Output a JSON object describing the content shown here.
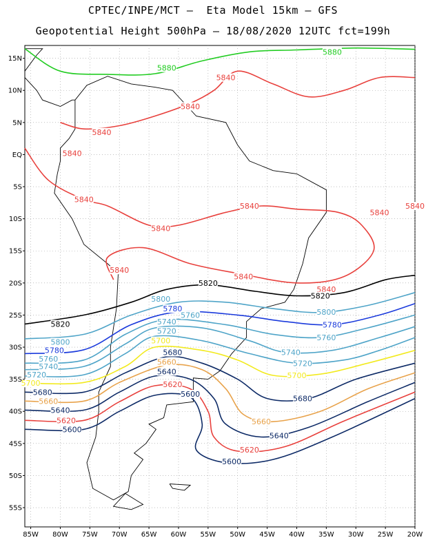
{
  "header": {
    "line1": "CPTEC/INPE/MCT –  Eta Model 15km – GFS",
    "line2": "Geopotential Height 500hPa – 18/08/2020 12UTC fct=199h"
  },
  "axes": {
    "lat_labels": [
      "15N",
      "10N",
      "5N",
      "EQ",
      "5S",
      "10S",
      "15S",
      "20S",
      "25S",
      "30S",
      "35S",
      "40S",
      "45S",
      "50S",
      "55S"
    ],
    "lat_values": [
      15,
      10,
      5,
      0,
      -5,
      -10,
      -15,
      -20,
      -25,
      -30,
      -35,
      -40,
      -45,
      -50,
      -55
    ],
    "lon_labels": [
      "85W",
      "80W",
      "75W",
      "70W",
      "65W",
      "60W",
      "55W",
      "50W",
      "45W",
      "40W",
      "35W",
      "30W",
      "25W",
      "20W"
    ],
    "lon_values": [
      -85,
      -80,
      -75,
      -70,
      -65,
      -60,
      -55,
      -50,
      -45,
      -40,
      -35,
      -30,
      -25,
      -20
    ],
    "lon_range": [
      -86,
      -20
    ],
    "lat_range": [
      -58,
      17
    ],
    "grid": "dotted"
  },
  "contours": [
    {
      "level": "5880",
      "color": "#22cc22",
      "label_lonlat": [
        [
          -62,
          13.5
        ],
        [
          -34,
          16
        ]
      ],
      "points": [
        [
          -86,
          16.5
        ],
        [
          -80,
          13
        ],
        [
          -72,
          12.5
        ],
        [
          -64,
          12.6
        ],
        [
          -56,
          14.6
        ],
        [
          -48,
          16
        ],
        [
          -40,
          16.3
        ],
        [
          -30,
          16.6
        ],
        [
          -20,
          16.4
        ]
      ]
    },
    {
      "level": "5840",
      "color": "#e8403c",
      "label_lonlat": [
        [
          -52,
          12
        ],
        [
          -58,
          7.5
        ],
        [
          -73,
          3.5
        ],
        [
          -78,
          0.2
        ],
        [
          -76,
          -7
        ],
        [
          -48,
          -8
        ],
        [
          -26,
          -9
        ],
        [
          -63,
          -11.5
        ],
        [
          -70,
          -18
        ],
        [
          -49,
          -19
        ],
        [
          -35,
          -21
        ],
        [
          -20,
          -8
        ]
      ],
      "points": [
        [
          -86,
          1
        ],
        [
          -82,
          -4
        ],
        [
          -76,
          -7
        ],
        [
          -72,
          -8
        ],
        [
          -65,
          -11
        ],
        [
          -60,
          -11
        ],
        [
          -52,
          -9
        ],
        [
          -46,
          -8
        ],
        [
          -40,
          -8.5
        ],
        [
          -33,
          -9
        ],
        [
          -29,
          -11
        ],
        [
          -27,
          -15
        ],
        [
          -32,
          -19
        ],
        [
          -40,
          -20
        ],
        [
          -50,
          -18.5
        ],
        [
          -58,
          -17
        ],
        [
          -66,
          -14.5
        ],
        [
          -72,
          -16
        ],
        [
          -71,
          -19.5
        ]
      ]
    },
    {
      "level": "5840",
      "color": "#e8403c",
      "label_lonlat": [],
      "points": [
        [
          -80,
          5
        ],
        [
          -76,
          4
        ],
        [
          -70,
          4.5
        ],
        [
          -64,
          6
        ],
        [
          -58,
          8
        ],
        [
          -54,
          10
        ],
        [
          -50,
          13
        ],
        [
          -44,
          11
        ],
        [
          -38,
          9
        ],
        [
          -32,
          10
        ],
        [
          -26,
          12
        ],
        [
          -20,
          12
        ]
      ]
    },
    {
      "level": "5820",
      "color": "#000000",
      "label_lonlat": [
        [
          -55,
          -20
        ],
        [
          -80,
          -26.4
        ],
        [
          -36,
          -22
        ]
      ],
      "points": [
        [
          -86,
          -26.4
        ],
        [
          -76,
          -25
        ],
        [
          -68,
          -23
        ],
        [
          -62,
          -21
        ],
        [
          -55,
          -20.3
        ],
        [
          -47,
          -21.3
        ],
        [
          -40,
          -22
        ],
        [
          -32,
          -21.5
        ],
        [
          -25,
          -19.5
        ],
        [
          -20,
          -18.8
        ]
      ]
    },
    {
      "level": "5800",
      "color": "#4ea4c8",
      "label_lonlat": [
        [
          -63,
          -22.5
        ],
        [
          -80,
          -29.2
        ],
        [
          -35,
          -24.5
        ]
      ],
      "points": [
        [
          -86,
          -28.7
        ],
        [
          -76,
          -28
        ],
        [
          -68,
          -25
        ],
        [
          -60,
          -23
        ],
        [
          -52,
          -23
        ],
        [
          -44,
          -24
        ],
        [
          -36,
          -24.6
        ],
        [
          -28,
          -23.5
        ],
        [
          -20,
          -21.5
        ]
      ]
    },
    {
      "level": "5780",
      "color": "#1a3adc",
      "label_lonlat": [
        [
          -61,
          -24
        ],
        [
          -81,
          -30.5
        ],
        [
          -34,
          -26.5
        ]
      ],
      "points": [
        [
          -86,
          -31
        ],
        [
          -76,
          -30.4
        ],
        [
          -68,
          -26.5
        ],
        [
          -60,
          -24.5
        ],
        [
          -50,
          -25
        ],
        [
          -42,
          -26
        ],
        [
          -34,
          -26.5
        ],
        [
          -26,
          -25
        ],
        [
          -20,
          -23.2
        ]
      ]
    },
    {
      "level": "5760",
      "color": "#4ea4c8",
      "label_lonlat": [
        [
          -58,
          -25
        ],
        [
          -82,
          -31.8
        ],
        [
          -35,
          -28.5
        ]
      ],
      "points": [
        [
          -86,
          -32.5
        ],
        [
          -76,
          -32
        ],
        [
          -69,
          -28
        ],
        [
          -62,
          -25.7
        ],
        [
          -52,
          -26.5
        ],
        [
          -44,
          -28
        ],
        [
          -36,
          -28.5
        ],
        [
          -28,
          -27
        ],
        [
          -20,
          -25
        ]
      ]
    },
    {
      "level": "5740",
      "color": "#4ea4c8",
      "label_lonlat": [
        [
          -62,
          -26
        ],
        [
          -82,
          -33
        ],
        [
          -41,
          -30.8
        ]
      ],
      "points": [
        [
          -86,
          -33.5
        ],
        [
          -76,
          -33
        ],
        [
          -69,
          -29.5
        ],
        [
          -64,
          -27
        ],
        [
          -56,
          -27
        ],
        [
          -48,
          -29
        ],
        [
          -42,
          -30.8
        ],
        [
          -34,
          -30.5
        ],
        [
          -26,
          -28.5
        ],
        [
          -20,
          -26.8
        ]
      ]
    },
    {
      "level": "5720",
      "color": "#4ea4c8",
      "label_lonlat": [
        [
          -62,
          -27.5
        ],
        [
          -84,
          -34.3
        ],
        [
          -39,
          -32.5
        ]
      ],
      "points": [
        [
          -86,
          -34.5
        ],
        [
          -76,
          -34.3
        ],
        [
          -69,
          -31
        ],
        [
          -64,
          -28.3
        ],
        [
          -56,
          -29
        ],
        [
          -48,
          -31
        ],
        [
          -40,
          -32.5
        ],
        [
          -32,
          -32
        ],
        [
          -26,
          -30.5
        ],
        [
          -20,
          -28.5
        ]
      ]
    },
    {
      "level": "5700",
      "color": "#f2ea1e",
      "label_lonlat": [
        [
          -63,
          -29
        ],
        [
          -85,
          -35.6
        ],
        [
          -40,
          -34.4
        ]
      ],
      "points": [
        [
          -86,
          -35.6
        ],
        [
          -76,
          -35.5
        ],
        [
          -69,
          -33
        ],
        [
          -64,
          -30
        ],
        [
          -56,
          -30.5
        ],
        [
          -50,
          -32
        ],
        [
          -44,
          -34.4
        ],
        [
          -36,
          -34.2
        ],
        [
          -28,
          -32.5
        ],
        [
          -20,
          -30.5
        ]
      ]
    },
    {
      "level": "5680",
      "color": "#0d2a66",
      "label_lonlat": [
        [
          -61,
          -30.8
        ],
        [
          -83,
          -37
        ],
        [
          -39,
          -38
        ]
      ],
      "points": [
        [
          -86,
          -37
        ],
        [
          -76,
          -37
        ],
        [
          -69,
          -34
        ],
        [
          -62,
          -31.5
        ],
        [
          -56,
          -32.5
        ],
        [
          -50,
          -35
        ],
        [
          -45,
          -38
        ],
        [
          -38,
          -38
        ],
        [
          -30,
          -35
        ],
        [
          -20,
          -32.5
        ]
      ]
    },
    {
      "level": "5660",
      "color": "#e8a24a",
      "label_lonlat": [
        [
          -62,
          -32.3
        ],
        [
          -82,
          -38.4
        ],
        [
          -46,
          -41.6
        ]
      ],
      "points": [
        [
          -86,
          -38.4
        ],
        [
          -76,
          -38.4
        ],
        [
          -70,
          -35.5
        ],
        [
          -62,
          -32.8
        ],
        [
          -56,
          -33.5
        ],
        [
          -52,
          -36.5
        ],
        [
          -49,
          -40.5
        ],
        [
          -44,
          -41.6
        ],
        [
          -36,
          -40
        ],
        [
          -28,
          -36.5
        ],
        [
          -20,
          -34
        ]
      ]
    },
    {
      "level": "5640",
      "color": "#0d2a66",
      "label_lonlat": [
        [
          -62,
          -33.8
        ],
        [
          -80,
          -39.8
        ],
        [
          -43,
          -43.8
        ]
      ],
      "points": [
        [
          -86,
          -39.8
        ],
        [
          -76,
          -39.8
        ],
        [
          -70,
          -37
        ],
        [
          -64,
          -34.5
        ],
        [
          -58,
          -35
        ],
        [
          -54,
          -38
        ],
        [
          -52,
          -42
        ],
        [
          -46,
          -44
        ],
        [
          -38,
          -42.5
        ],
        [
          -28,
          -38.5
        ],
        [
          -20,
          -35.5
        ]
      ]
    },
    {
      "level": "5620",
      "color": "#e8403c",
      "label_lonlat": [
        [
          -61,
          -35.8
        ],
        [
          -79,
          -41.4
        ],
        [
          -48,
          -46
        ]
      ],
      "points": [
        [
          -86,
          -41.4
        ],
        [
          -76,
          -41.4
        ],
        [
          -70,
          -38.5
        ],
        [
          -64,
          -36
        ],
        [
          -58,
          -36.5
        ],
        [
          -55,
          -40
        ],
        [
          -54,
          -44
        ],
        [
          -50,
          -46.2
        ],
        [
          -42,
          -45.5
        ],
        [
          -32,
          -41.5
        ],
        [
          -20,
          -37
        ]
      ]
    },
    {
      "level": "5600",
      "color": "#0d2a66",
      "label_lonlat": [
        [
          -58,
          -37.3
        ],
        [
          -78,
          -42.8
        ],
        [
          -51,
          -47.8
        ]
      ],
      "points": [
        [
          -86,
          -42.8
        ],
        [
          -76,
          -42.8
        ],
        [
          -70,
          -40
        ],
        [
          -64,
          -37.5
        ],
        [
          -58,
          -37.8
        ],
        [
          -56,
          -42
        ],
        [
          -57,
          -46
        ],
        [
          -52,
          -48
        ],
        [
          -44,
          -47.5
        ],
        [
          -34,
          -44
        ],
        [
          -20,
          -38
        ]
      ]
    }
  ]
}
